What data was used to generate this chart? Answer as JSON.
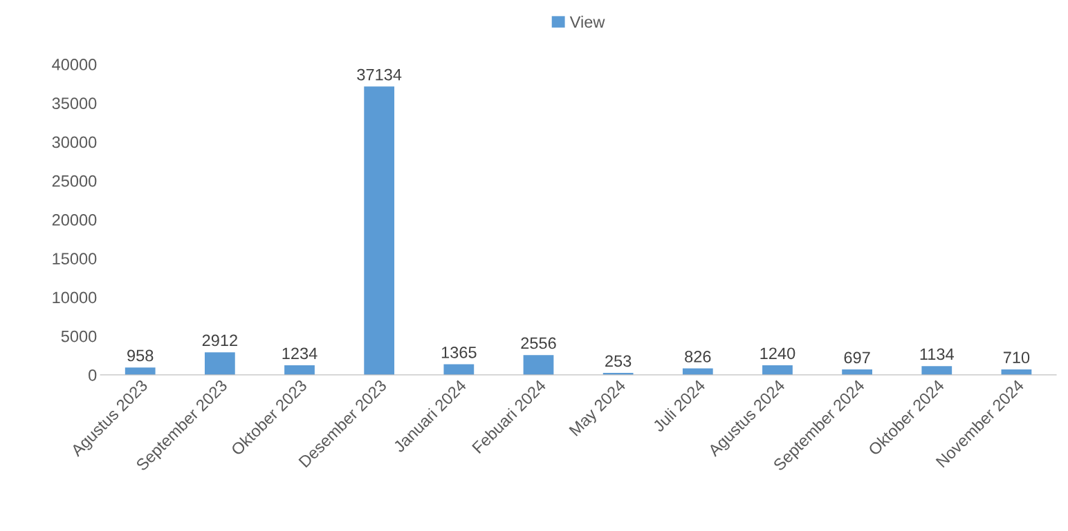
{
  "chart_data": {
    "type": "bar",
    "categories": [
      "Agustus 2023",
      "September 2023",
      "Oktober 2023",
      "Desember 2023",
      "Januari 2024",
      "Febuari 2024",
      "May 2024",
      "Juli 2024",
      "Agustus 2024",
      "September 2024",
      "Oktober 2024",
      "November 2024"
    ],
    "series": [
      {
        "name": "View",
        "color": "#5b9bd5",
        "values": [
          958,
          2912,
          1234,
          37134,
          1365,
          2556,
          253,
          826,
          1240,
          697,
          1134,
          710
        ]
      }
    ],
    "ylim": [
      0,
      40000
    ],
    "yticks": [
      0,
      5000,
      10000,
      15000,
      20000,
      25000,
      30000,
      35000,
      40000
    ],
    "grid": false,
    "legend": "top",
    "data_labels": true
  }
}
